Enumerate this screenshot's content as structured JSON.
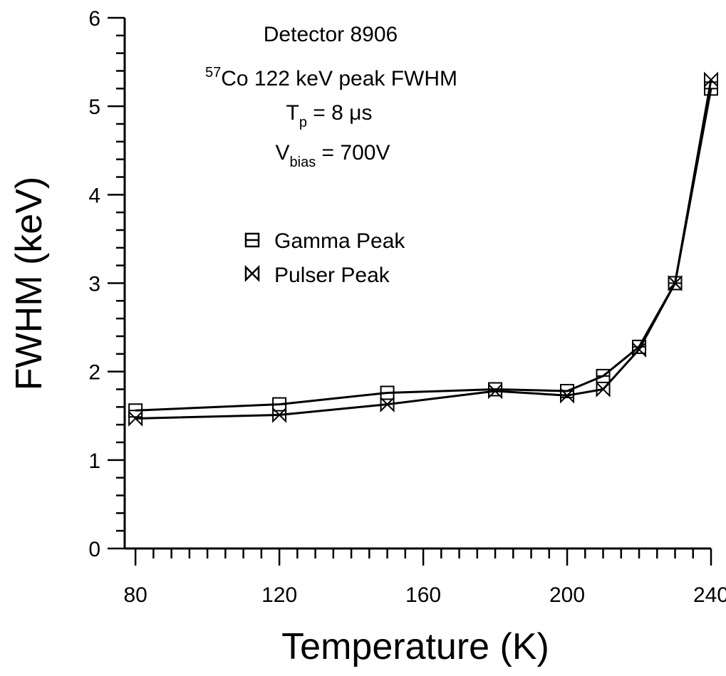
{
  "chart_data": {
    "type": "line",
    "xlabel": "Temperature (K)",
    "ylabel": "FWHM (keV)",
    "xlim": [
      77,
      240
    ],
    "ylim": [
      0,
      6
    ],
    "xticks": [
      80,
      120,
      160,
      200,
      240
    ],
    "xtick_labels": [
      "80",
      "120",
      "160",
      "200",
      "240"
    ],
    "yticks": [
      0,
      1,
      2,
      3,
      4,
      5,
      6
    ],
    "ytick_labels": [
      "0",
      "1",
      "2",
      "3",
      "4",
      "5",
      "6"
    ],
    "grid": false,
    "annotation": {
      "line1": "Detector 8906",
      "line2_sup": "57",
      "line2": "Co 122 keV peak FWHM",
      "line3_main": "T",
      "line3_sub": "p",
      "line3_rest": " = 8 μs",
      "line4_main": "V",
      "line4_sub": "bias",
      "line4_rest": " = 700V"
    },
    "legend_position": "upper-left-center",
    "series": [
      {
        "name": "Gamma Peak",
        "marker": "square-with-bar",
        "color": "#000000",
        "x": [
          80,
          120,
          150,
          180,
          200,
          210,
          220,
          230,
          240
        ],
        "y": [
          1.56,
          1.63,
          1.76,
          1.8,
          1.78,
          1.95,
          2.28,
          3.0,
          5.2
        ]
      },
      {
        "name": "Pulser Peak",
        "marker": "bowtie",
        "color": "#000000",
        "x": [
          80,
          120,
          150,
          180,
          200,
          210,
          220,
          230,
          240
        ],
        "y": [
          1.47,
          1.51,
          1.63,
          1.78,
          1.73,
          1.8,
          2.25,
          3.0,
          5.3
        ]
      }
    ]
  }
}
